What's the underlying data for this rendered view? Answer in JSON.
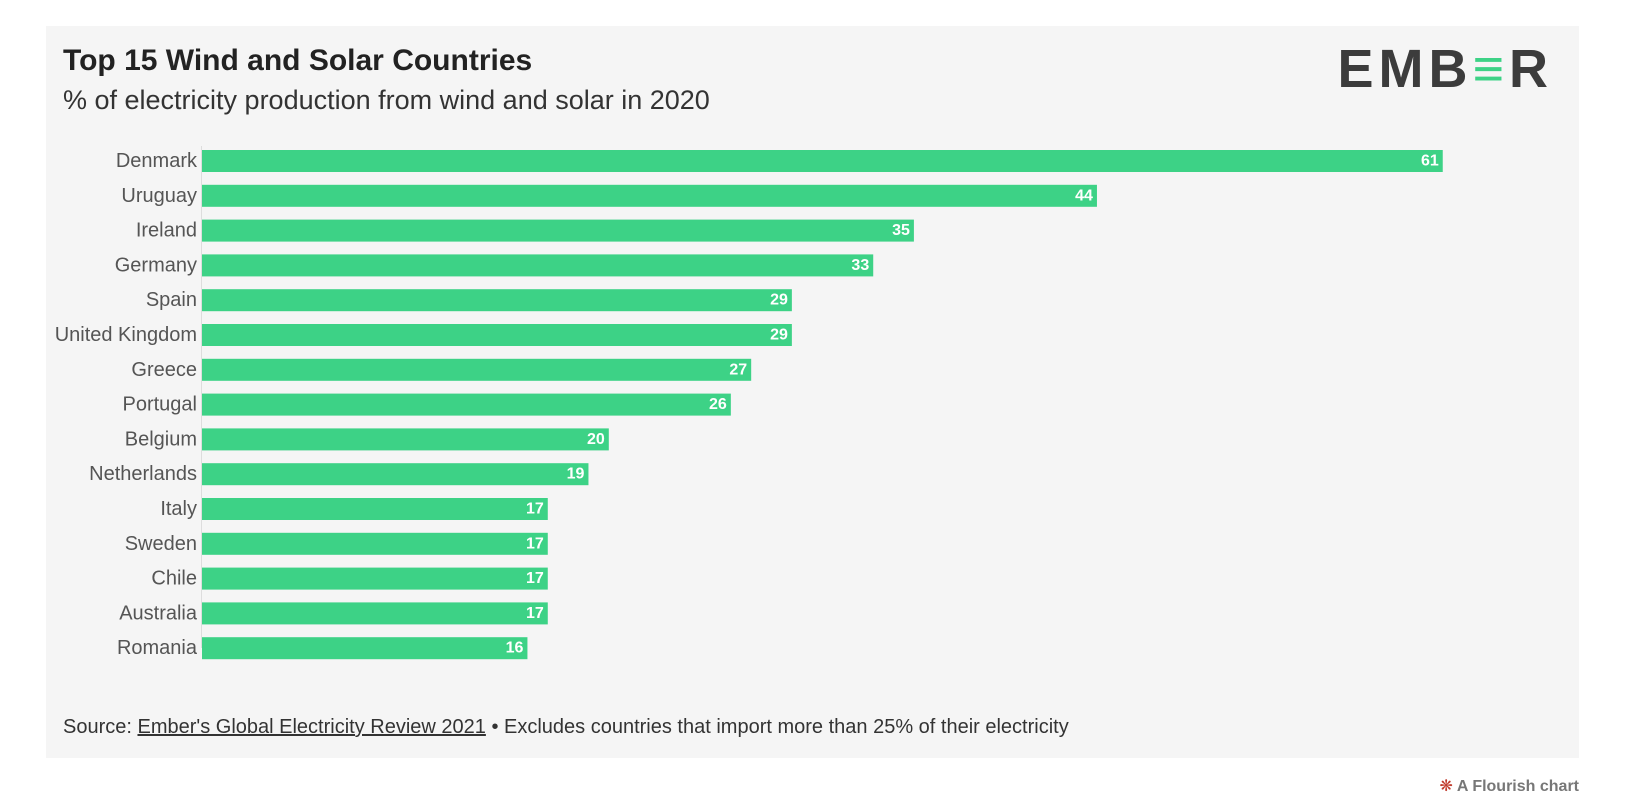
{
  "colors": {
    "bar": "#3dd286",
    "card_bg": "#f5f5f5",
    "logo_text": "#3c3c3c",
    "logo_accent": "#3dd286"
  },
  "logo": {
    "part1": "EMB",
    "part2": "≡",
    "part3": "R"
  },
  "source": {
    "prefix": "Source: ",
    "link_text": "Ember's Global Electricity Review 2021",
    "suffix": " • Excludes countries that import more than 25% of their electricity"
  },
  "credit": {
    "icon": "flourish-logo-icon",
    "text": "A Flourish chart"
  },
  "chart_data": {
    "type": "bar",
    "orientation": "horizontal",
    "title": "Top 15 Wind and Solar Countries",
    "subtitle": "% of electricity production from wind and solar in 2020",
    "categories": [
      "Denmark",
      "Uruguay",
      "Ireland",
      "Germany",
      "Spain",
      "United Kingdom",
      "Greece",
      "Portugal",
      "Belgium",
      "Netherlands",
      "Italy",
      "Sweden",
      "Chile",
      "Australia",
      "Romania"
    ],
    "values": [
      61,
      44,
      35,
      33,
      29,
      29,
      27,
      26,
      20,
      19,
      17,
      17,
      17,
      17,
      16
    ],
    "xlim": [
      0,
      61
    ],
    "grid": false,
    "legend": "none",
    "data_labels": true
  }
}
